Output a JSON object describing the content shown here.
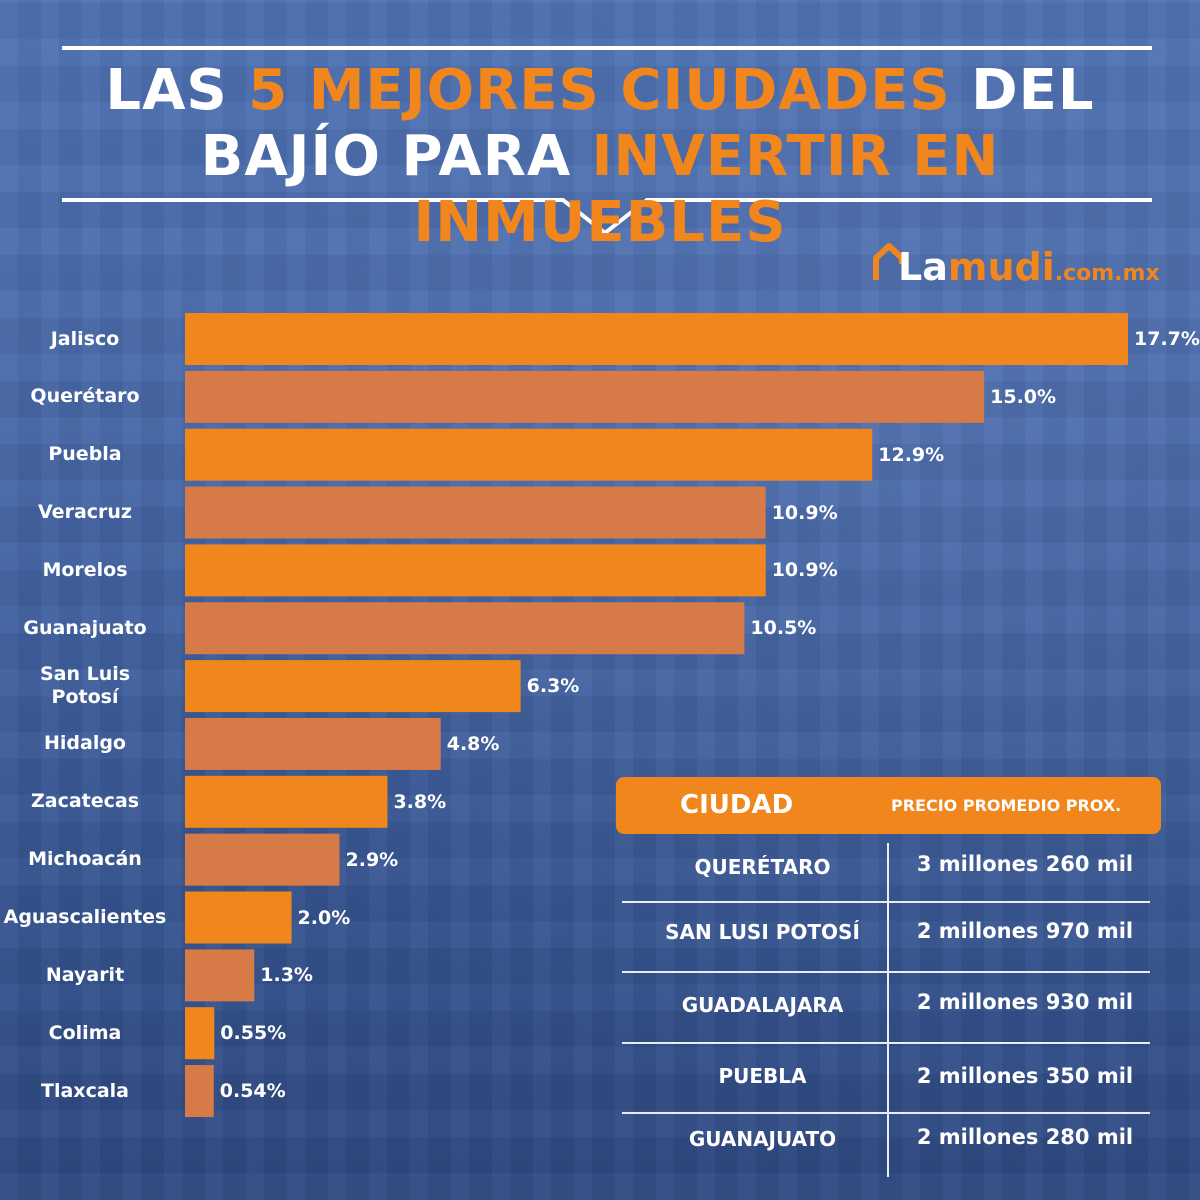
{
  "title": {
    "line1_a": "LAS ",
    "line1_b": "5 MEJORES CIUDADES",
    "line1_c": " DEL",
    "line2_a": "BAJÍO PARA ",
    "line2_b": "INVERTIR EN INMUEBLES"
  },
  "logo": {
    "la": "La",
    "mudi": "mudi",
    "suffix": ".com.mx"
  },
  "colors": {
    "accent": "#f1861c",
    "bar_alt": "#d67a48",
    "background": "#4a6bab"
  },
  "chart_data": {
    "type": "bar",
    "orientation": "horizontal",
    "title": "",
    "categories": [
      "Jalisco",
      "Querétaro",
      "Puebla",
      "Veracruz",
      "Morelos",
      "Guanajuato",
      "San Luis Potosí",
      "Hidalgo",
      "Zacatecas",
      "Michoacán",
      "Aguascalientes",
      "Nayarit",
      "Colima",
      "Tlaxcala"
    ],
    "category_lines": [
      [
        "Jalisco"
      ],
      [
        "Querétaro"
      ],
      [
        "Puebla"
      ],
      [
        "Veracruz"
      ],
      [
        "Morelos"
      ],
      [
        "Guanajuato"
      ],
      [
        "San Luis",
        "Potosí"
      ],
      [
        "Hidalgo"
      ],
      [
        "Zacatecas"
      ],
      [
        "Michoacán"
      ],
      [
        "Aguascalientes"
      ],
      [
        "Nayarit"
      ],
      [
        "Colima"
      ],
      [
        "Tlaxcala"
      ]
    ],
    "values": [
      17.7,
      15.0,
      12.9,
      10.9,
      10.9,
      10.5,
      6.3,
      4.8,
      3.8,
      2.9,
      2.0,
      1.3,
      0.55,
      0.54
    ],
    "value_labels": [
      "17.7%",
      "15.0%",
      "12.9%",
      "10.9%",
      "10.9%",
      "10.5%",
      "6.3%",
      "4.8%",
      "3.8%",
      "2.9%",
      "2.0%",
      "1.3%",
      "0.55%",
      "0.54%"
    ],
    "unit": "%",
    "xlim": [
      0,
      17.7
    ],
    "bar_colors": [
      "#f1861c",
      "#d67a48"
    ],
    "grid": false,
    "legend": "none"
  },
  "table": {
    "header_city": "CIUDAD",
    "header_price": "PRECIO PROMEDIO PROX.",
    "rows": [
      {
        "city": "QUERÉTARO",
        "price": "3 millones 260 mil"
      },
      {
        "city": "SAN LUSI POTOSÍ",
        "price": "2 millones 970 mil"
      },
      {
        "city": "GUADALAJARA",
        "price": "2 millones 930 mil"
      },
      {
        "city": "PUEBLA",
        "price": "2 millones 350 mil"
      },
      {
        "city": "GUANAJUATO",
        "price": "2 millones 280 mil"
      }
    ]
  }
}
